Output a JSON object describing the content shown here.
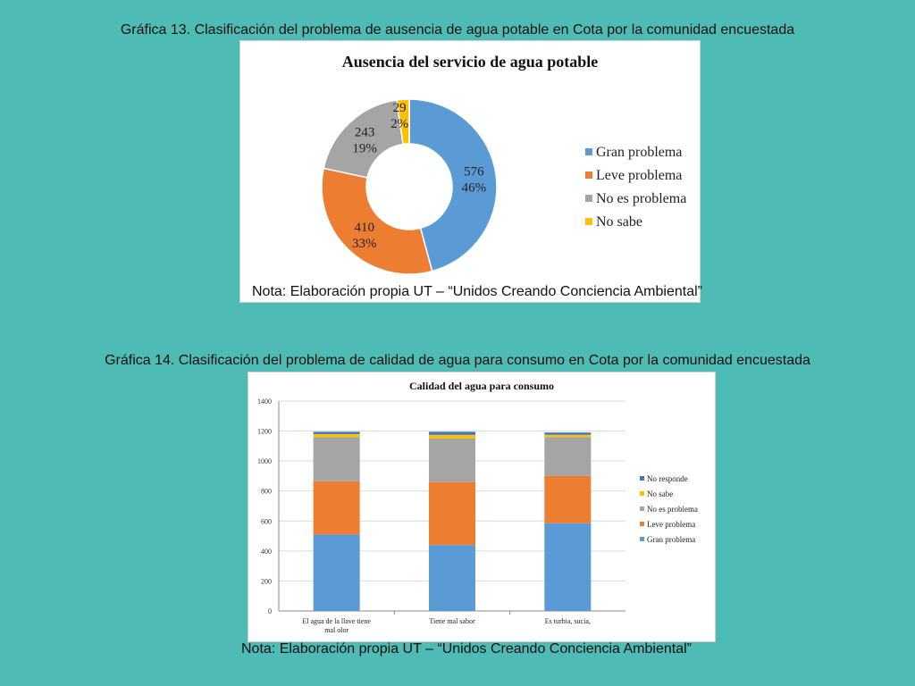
{
  "captions": {
    "chart13": "Gráfica 13. Clasificación del problema de ausencia de agua potable en Cota por la comunidad encuestada",
    "chart14": "Gráfica 14. Clasificación del problema de calidad de agua para consumo en Cota por la comunidad encuestada"
  },
  "notes": {
    "chart13": "Nota: Elaboración propia UT – “Unidos Creando Conciencia Ambiental”",
    "chart14": "Nota: Elaboración propia UT – “Unidos Creando Conciencia Ambiental”"
  },
  "chart_data": [
    {
      "type": "pie",
      "variant": "donut",
      "title": "Ausencia del servicio de agua potable",
      "legend_position": "right",
      "slices": [
        {
          "name": "Gran problema",
          "value": 576,
          "percent": "46%",
          "color": "#5b9bd5"
        },
        {
          "name": "Leve problema",
          "value": 410,
          "percent": "33%",
          "color": "#ed7d31"
        },
        {
          "name": "No es problema",
          "value": 243,
          "percent": "19%",
          "color": "#a5a5a5"
        },
        {
          "name": "No sabe",
          "value": 29,
          "percent": "2%",
          "color": "#ffc000"
        }
      ]
    },
    {
      "type": "bar",
      "variant": "stacked",
      "title": "Calidad del agua para consumo",
      "categories": [
        "El agua de la llave tiene mal olor",
        "Tiene mal sabor",
        "Es turbia, sucia,"
      ],
      "ylim": [
        0,
        1400
      ],
      "yticks": [
        0,
        200,
        400,
        600,
        800,
        1000,
        1200,
        1400
      ],
      "grid": true,
      "legend_position": "right",
      "series": [
        {
          "name": "Gran problema",
          "color": "#5b9bd5",
          "values": [
            510,
            440,
            585
          ]
        },
        {
          "name": "Leve problema",
          "color": "#ed7d31",
          "values": [
            355,
            420,
            315
          ]
        },
        {
          "name": "No es problema",
          "color": "#a5a5a5",
          "values": [
            295,
            290,
            260
          ]
        },
        {
          "name": "No sabe",
          "color": "#ffc000",
          "values": [
            20,
            25,
            15
          ]
        },
        {
          "name": "No responde",
          "color": "#4472c4",
          "values": [
            15,
            20,
            15
          ]
        }
      ]
    }
  ]
}
